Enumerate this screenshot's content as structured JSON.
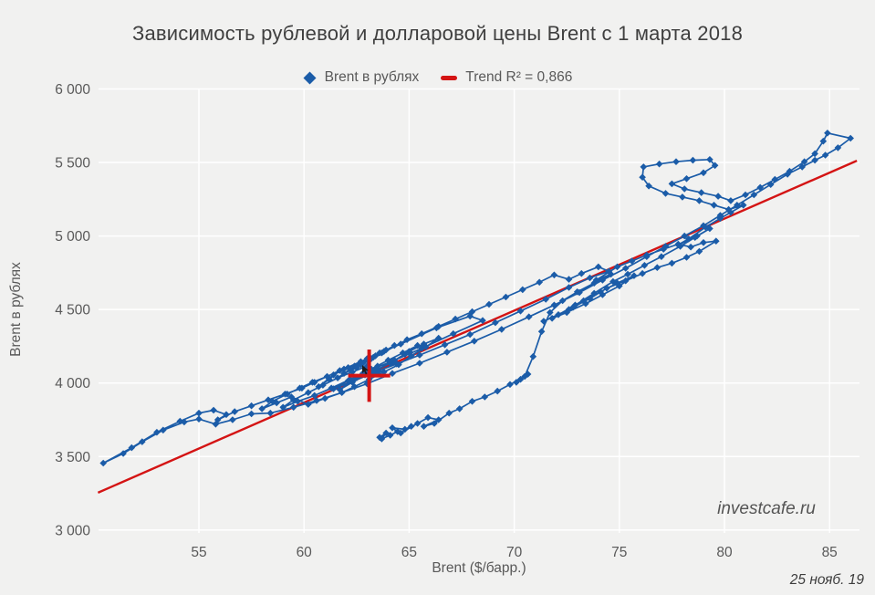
{
  "title": "Зависимость рублевой и долларовой цены Brent с 1 марта 2018",
  "legend": {
    "series_label": "Brent в рублях",
    "trend_label": "Trend R² = 0,866"
  },
  "watermark": "investcafe.ru",
  "date_stamp": "25 нояб. 19",
  "colors": {
    "series": "#1b5ca8",
    "trend": "#d41414",
    "background": "#f1f1f0",
    "gridline": "#ffffff",
    "tick_text": "#595959",
    "title_text": "#3f3f3f"
  },
  "chart_data": {
    "type": "scatter",
    "connected": true,
    "marker": "diamond",
    "grid": true,
    "legend_position": "top-center",
    "title": "Зависимость рублевой и долларовой цены Brent с 1 марта 2018",
    "xlabel": "Brent ($/барр.)",
    "ylabel": "Brent в рублях",
    "xlim": [
      50.3,
      86.2
    ],
    "ylim": [
      3000,
      6000
    ],
    "x_ticks": [
      55,
      60,
      65,
      70,
      75,
      80,
      85
    ],
    "y_ticks": [
      {
        "value": 3000,
        "label": "3 000"
      },
      {
        "value": 3500,
        "label": "3 500"
      },
      {
        "value": 4000,
        "label": "4 000"
      },
      {
        "value": 4500,
        "label": "4 500"
      },
      {
        "value": 5000,
        "label": "5 000"
      },
      {
        "value": 5500,
        "label": "5 500"
      },
      {
        "value": 6000,
        "label": "6 000"
      }
    ],
    "series": [
      {
        "name": "Brent в рублях",
        "points": [
          [
            63.6,
            3630
          ],
          [
            63.9,
            3660
          ],
          [
            63.7,
            3620
          ],
          [
            64.1,
            3645
          ],
          [
            64.45,
            3670
          ],
          [
            64.2,
            3695
          ],
          [
            64.8,
            3685
          ],
          [
            65.1,
            3705
          ],
          [
            64.6,
            3660
          ],
          [
            65.4,
            3725
          ],
          [
            65.9,
            3765
          ],
          [
            66.4,
            3750
          ],
          [
            65.7,
            3705
          ],
          [
            66.2,
            3725
          ],
          [
            66.9,
            3795
          ],
          [
            67.4,
            3825
          ],
          [
            68.0,
            3875
          ],
          [
            68.6,
            3905
          ],
          [
            69.2,
            3945
          ],
          [
            69.8,
            3990
          ],
          [
            70.3,
            4025
          ],
          [
            70.65,
            4060
          ],
          [
            70.1,
            4005
          ],
          [
            70.5,
            4045
          ],
          [
            70.9,
            4180
          ],
          [
            71.3,
            4350
          ],
          [
            71.7,
            4480
          ],
          [
            72.3,
            4560
          ],
          [
            73.0,
            4620
          ],
          [
            73.8,
            4680
          ],
          [
            74.6,
            4740
          ],
          [
            73.9,
            4700
          ],
          [
            74.9,
            4790
          ],
          [
            75.6,
            4830
          ],
          [
            76.3,
            4870
          ],
          [
            77.1,
            4910
          ],
          [
            77.8,
            4945
          ],
          [
            78.4,
            4925
          ],
          [
            79.0,
            4955
          ],
          [
            79.6,
            4965
          ],
          [
            78.8,
            4895
          ],
          [
            78.2,
            4855
          ],
          [
            77.5,
            4815
          ],
          [
            76.8,
            4785
          ],
          [
            76.1,
            4745
          ],
          [
            75.3,
            4695
          ],
          [
            74.4,
            4645
          ],
          [
            73.6,
            4575
          ],
          [
            72.8,
            4515
          ],
          [
            72.1,
            4465
          ],
          [
            71.4,
            4420
          ],
          [
            72.6,
            4500
          ],
          [
            73.3,
            4560
          ],
          [
            74.1,
            4620
          ],
          [
            74.9,
            4680
          ],
          [
            75.7,
            4730
          ],
          [
            75.0,
            4660
          ],
          [
            74.2,
            4600
          ],
          [
            73.4,
            4540
          ],
          [
            72.5,
            4480
          ],
          [
            71.8,
            4440
          ],
          [
            72.9,
            4530
          ],
          [
            73.8,
            4610
          ],
          [
            74.7,
            4690
          ],
          [
            75.4,
            4740
          ],
          [
            76.2,
            4800
          ],
          [
            77.0,
            4860
          ],
          [
            77.9,
            4930
          ],
          [
            78.6,
            4990
          ],
          [
            79.3,
            5050
          ],
          [
            78.7,
            5000
          ],
          [
            77.8,
            4940
          ],
          [
            78.3,
            4980
          ],
          [
            79.1,
            5060
          ],
          [
            79.8,
            5120
          ],
          [
            80.3,
            5160
          ],
          [
            80.9,
            5210
          ],
          [
            80.2,
            5180
          ],
          [
            79.5,
            5210
          ],
          [
            78.8,
            5240
          ],
          [
            78.0,
            5265
          ],
          [
            77.2,
            5290
          ],
          [
            76.4,
            5340
          ],
          [
            76.1,
            5400
          ],
          [
            76.15,
            5470
          ],
          [
            76.9,
            5490
          ],
          [
            77.7,
            5505
          ],
          [
            78.5,
            5515
          ],
          [
            79.3,
            5520
          ],
          [
            79.55,
            5480
          ],
          [
            79.0,
            5430
          ],
          [
            78.2,
            5390
          ],
          [
            77.5,
            5355
          ],
          [
            78.1,
            5320
          ],
          [
            78.9,
            5295
          ],
          [
            79.7,
            5270
          ],
          [
            80.3,
            5240
          ],
          [
            81.0,
            5280
          ],
          [
            81.7,
            5330
          ],
          [
            82.4,
            5385
          ],
          [
            83.1,
            5440
          ],
          [
            83.8,
            5505
          ],
          [
            84.3,
            5560
          ],
          [
            84.7,
            5645
          ],
          [
            84.9,
            5700
          ],
          [
            86.0,
            5665
          ],
          [
            85.4,
            5600
          ],
          [
            84.8,
            5550
          ],
          [
            84.3,
            5515
          ],
          [
            83.7,
            5470
          ],
          [
            83.0,
            5420
          ],
          [
            82.2,
            5350
          ],
          [
            81.4,
            5280
          ],
          [
            80.6,
            5210
          ],
          [
            79.8,
            5140
          ],
          [
            79.0,
            5070
          ],
          [
            78.1,
            5000
          ],
          [
            77.2,
            4930
          ],
          [
            76.3,
            4860
          ],
          [
            75.3,
            4780
          ],
          [
            74.2,
            4700
          ],
          [
            73.1,
            4615
          ],
          [
            71.9,
            4530
          ],
          [
            70.7,
            4450
          ],
          [
            69.4,
            4365
          ],
          [
            68.1,
            4285
          ],
          [
            66.8,
            4210
          ],
          [
            65.5,
            4135
          ],
          [
            64.2,
            4065
          ],
          [
            63.0,
            3995
          ],
          [
            61.8,
            3935
          ],
          [
            60.6,
            3880
          ],
          [
            59.5,
            3835
          ],
          [
            58.4,
            3795
          ],
          [
            57.5,
            3790
          ],
          [
            56.6,
            3750
          ],
          [
            55.8,
            3720
          ],
          [
            55.0,
            3755
          ],
          [
            54.3,
            3735
          ],
          [
            53.3,
            3680
          ],
          [
            52.3,
            3600
          ],
          [
            51.4,
            3520
          ],
          [
            50.45,
            3455
          ],
          [
            51.8,
            3560
          ],
          [
            53.0,
            3665
          ],
          [
            54.1,
            3740
          ],
          [
            55.0,
            3795
          ],
          [
            55.7,
            3815
          ],
          [
            56.3,
            3785
          ],
          [
            55.9,
            3750
          ],
          [
            56.7,
            3805
          ],
          [
            57.5,
            3845
          ],
          [
            58.3,
            3885
          ],
          [
            59.1,
            3925
          ],
          [
            59.9,
            3965
          ],
          [
            60.5,
            4005
          ],
          [
            61.1,
            4045
          ],
          [
            61.7,
            4085
          ],
          [
            61.2,
            4025
          ],
          [
            60.7,
            3975
          ],
          [
            61.4,
            4055
          ],
          [
            62.1,
            4105
          ],
          [
            62.7,
            4145
          ],
          [
            62.2,
            4095
          ],
          [
            61.6,
            4035
          ],
          [
            62.4,
            4115
          ],
          [
            63.1,
            4165
          ],
          [
            63.6,
            4205
          ],
          [
            63.0,
            4155
          ],
          [
            62.5,
            4105
          ],
          [
            61.9,
            4065
          ],
          [
            62.8,
            4135
          ],
          [
            63.4,
            4185
          ],
          [
            63.9,
            4225
          ],
          [
            63.3,
            4175
          ],
          [
            62.7,
            4125
          ],
          [
            63.2,
            4165
          ],
          [
            63.8,
            4215
          ],
          [
            64.3,
            4255
          ],
          [
            63.7,
            4205
          ],
          [
            63.1,
            4155
          ],
          [
            64.9,
            4295
          ],
          [
            65.6,
            4335
          ],
          [
            66.4,
            4385
          ],
          [
            67.2,
            4435
          ],
          [
            68.0,
            4485
          ],
          [
            68.8,
            4535
          ],
          [
            69.6,
            4585
          ],
          [
            70.4,
            4635
          ],
          [
            71.2,
            4685
          ],
          [
            71.9,
            4735
          ],
          [
            72.6,
            4705
          ],
          [
            73.2,
            4745
          ],
          [
            74.0,
            4790
          ],
          [
            74.5,
            4760
          ],
          [
            73.6,
            4715
          ],
          [
            72.6,
            4650
          ],
          [
            71.5,
            4570
          ],
          [
            70.3,
            4490
          ],
          [
            69.1,
            4410
          ],
          [
            67.9,
            4330
          ],
          [
            66.7,
            4260
          ],
          [
            65.5,
            4190
          ],
          [
            64.4,
            4130
          ],
          [
            63.3,
            4070
          ],
          [
            62.3,
            4010
          ],
          [
            61.4,
            3960
          ],
          [
            62.1,
            4015
          ],
          [
            62.8,
            4065
          ],
          [
            63.5,
            4115
          ],
          [
            62.9,
            4055
          ],
          [
            62.3,
            4005
          ],
          [
            61.7,
            3955
          ],
          [
            62.5,
            4035
          ],
          [
            63.2,
            4095
          ],
          [
            64.0,
            4155
          ],
          [
            64.7,
            4205
          ],
          [
            65.4,
            4255
          ],
          [
            64.8,
            4195
          ],
          [
            64.1,
            4135
          ],
          [
            63.4,
            4085
          ],
          [
            64.2,
            4145
          ],
          [
            65.0,
            4215
          ],
          [
            65.7,
            4265
          ],
          [
            66.4,
            4305
          ],
          [
            65.8,
            4245
          ],
          [
            65.1,
            4185
          ],
          [
            64.5,
            4125
          ],
          [
            63.8,
            4075
          ],
          [
            63.1,
            4025
          ],
          [
            62.4,
            3975
          ],
          [
            61.8,
            3935
          ],
          [
            61.0,
            3895
          ],
          [
            60.2,
            3855
          ],
          [
            59.4,
            3905
          ],
          [
            58.7,
            3865
          ],
          [
            58.0,
            3825
          ],
          [
            58.5,
            3875
          ],
          [
            59.2,
            3925
          ],
          [
            59.8,
            3965
          ],
          [
            60.4,
            4005
          ],
          [
            61.1,
            4045
          ],
          [
            61.9,
            4095
          ],
          [
            63.0,
            4165
          ],
          [
            64.6,
            4265
          ],
          [
            66.3,
            4375
          ],
          [
            67.9,
            4455
          ],
          [
            68.5,
            4425
          ],
          [
            67.1,
            4335
          ],
          [
            65.6,
            4235
          ],
          [
            64.3,
            4155
          ],
          [
            63.1,
            4085
          ],
          [
            62.2,
            4025
          ],
          [
            61.3,
            3965
          ],
          [
            60.5,
            3915
          ],
          [
            59.7,
            3875
          ],
          [
            59.0,
            3835
          ],
          [
            59.5,
            3885
          ],
          [
            60.2,
            3935
          ],
          [
            60.9,
            3985
          ],
          [
            61.6,
            4035
          ],
          [
            62.3,
            4075
          ],
          [
            63.0,
            4115
          ],
          [
            63.4,
            4065
          ],
          [
            63.2,
            4095
          ],
          [
            63.55,
            4080
          ]
        ]
      }
    ],
    "trend": {
      "label": "Trend R² = 0,866",
      "r_squared": "0,866",
      "line": [
        [
          50.2,
          3254
        ],
        [
          86.3,
          5512
        ]
      ]
    },
    "mean_marker": {
      "x": 63.1,
      "y": 4050,
      "half_width_x": 1.0,
      "half_width_y": 178
    }
  }
}
